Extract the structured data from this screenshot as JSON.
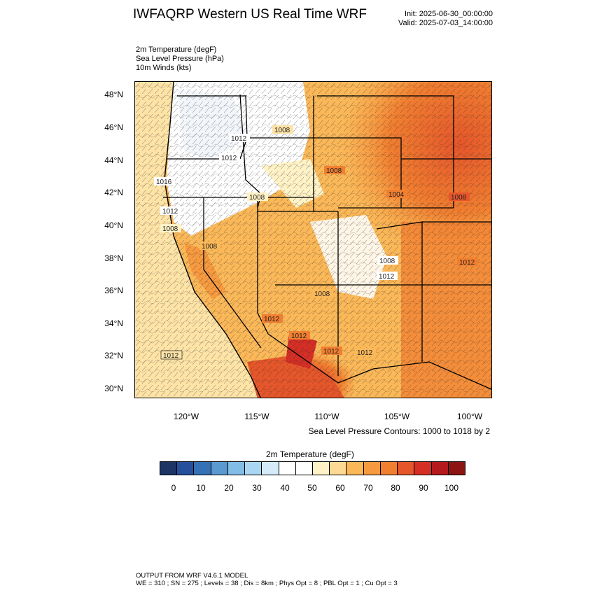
{
  "header": {
    "title": "IWFAQRP Western US Real Time WRF",
    "init": "Init: 2025-06-30_00:00:00",
    "valid": "Valid: 2025-07-03_14:00:00"
  },
  "fields": [
    "2m Temperature   (degF)",
    "Sea Level Pressure   (hPa)",
    "10m Winds   (kts)"
  ],
  "map": {
    "lat_labels": [
      "48°N",
      "46°N",
      "44°N",
      "42°N",
      "40°N",
      "38°N",
      "36°N",
      "34°N",
      "32°N",
      "30°N"
    ],
    "lon_labels": [
      "120°W",
      "115°W",
      "110°W",
      "105°W",
      "100°W"
    ],
    "pressure_labels": [
      "1008",
      "1012",
      "1016",
      "1008",
      "1012",
      "1008",
      "1008",
      "1004",
      "1008",
      "1012",
      "1008",
      "1012",
      "1008",
      "1012",
      "1012",
      "1012",
      "1012",
      "1008",
      "1012"
    ],
    "contour_note": "Sea Level Pressure Contours: 1000 to 1018 by 2"
  },
  "colorbar": {
    "title": "2m Temperature  (degF)",
    "colors": [
      "#1e3465",
      "#27509c",
      "#3471b5",
      "#5a9ad0",
      "#82bde6",
      "#a9d6f2",
      "#d3ecf8",
      "#ffffff",
      "#ffffff",
      "#fff2c6",
      "#fdd993",
      "#fbb858",
      "#f79a3f",
      "#f17f30",
      "#e5562a",
      "#d42e25",
      "#b3191d",
      "#8c1514"
    ],
    "ticks": [
      "0",
      "10",
      "20",
      "30",
      "40",
      "50",
      "60",
      "70",
      "80",
      "90",
      "100"
    ]
  },
  "footer": {
    "line1": "OUTPUT FROM WRF V4.6.1 MODEL",
    "line2": "WE = 310 ; SN = 275 ; Levels = 38 ; Dis = 8km ; Phys Opt = 8 ; PBL Opt = 1 ; Cu Opt = 3"
  }
}
